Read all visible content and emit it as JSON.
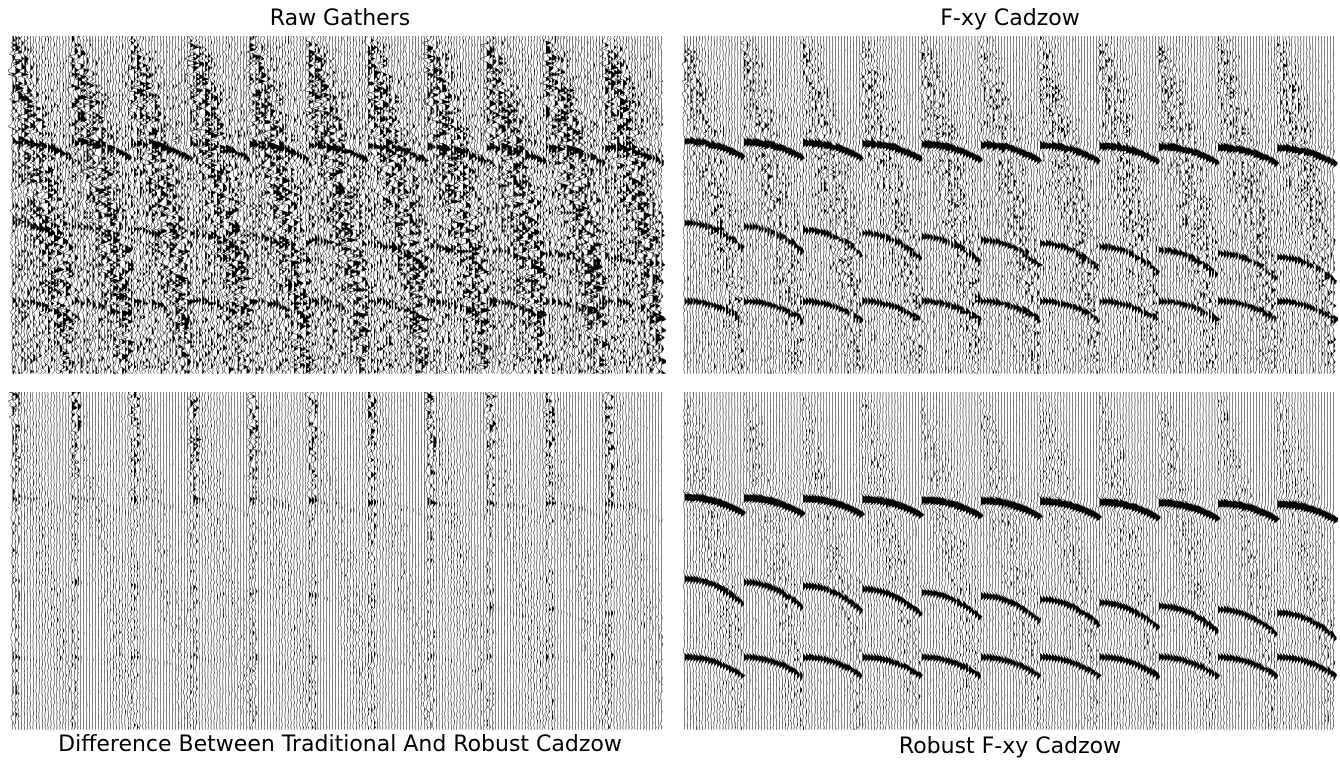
{
  "panels": [
    {
      "id": "raw",
      "title": "Raw Gathers",
      "noise": 1.0,
      "signal": 0.55,
      "diff": false
    },
    {
      "id": "fxy",
      "title": "F-xy Cadzow",
      "noise": 0.45,
      "signal": 0.85,
      "diff": false
    },
    {
      "id": "diff",
      "title": "Difference Between Traditional And Robust Cadzow",
      "noise": 0.35,
      "signal": 0.15,
      "diff": true
    },
    {
      "id": "rob",
      "title": "Robust F-xy Cadzow",
      "noise": 0.25,
      "signal": 1.0,
      "diff": false
    }
  ],
  "gathers": 11,
  "traces_per_gather": 20,
  "colors": {
    "trace": "#000000",
    "background": "#ffffff"
  }
}
